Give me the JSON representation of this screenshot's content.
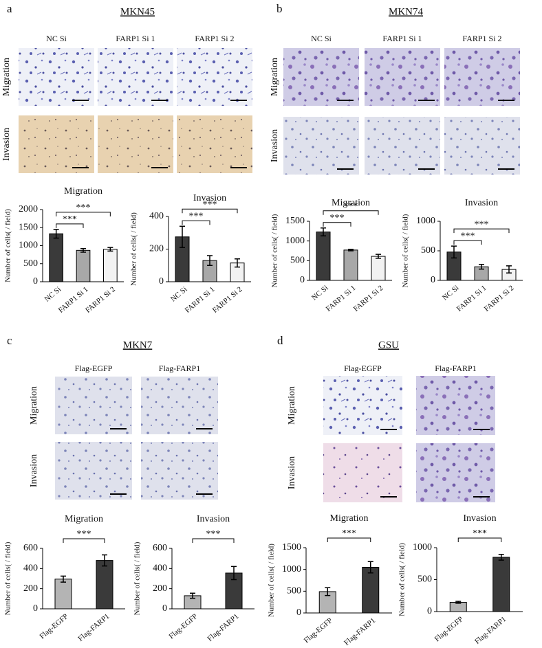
{
  "panels": [
    {
      "label": "a",
      "title": "MKN45",
      "columns": [
        "NC Si",
        "FARP1 Si 1",
        "FARP1 Si 2"
      ],
      "rows": [
        "Migration",
        "Invasion"
      ]
    },
    {
      "label": "b",
      "title": "MKN74",
      "columns": [
        "NC Si",
        "FARP1 Si 1",
        "FARP1 Si 2"
      ],
      "rows": [
        "Migration",
        "Invasion"
      ]
    },
    {
      "label": "c",
      "title": "MKN7",
      "columns": [
        "Flag-EGFP",
        "Flag-FARP1"
      ],
      "rows": [
        "Migration",
        "Invasion"
      ]
    },
    {
      "label": "d",
      "title": "GSU",
      "columns": [
        "Flag-EGFP",
        "Flag-FARP1"
      ],
      "rows": [
        "Migration",
        "Invasion"
      ]
    }
  ],
  "chart_data": [
    {
      "type": "bar",
      "title": "Migration",
      "ylabel": "Number of cells( / field)",
      "categories": [
        "NC Si",
        "FARP1 Si 1",
        "FARP1 Si 2"
      ],
      "values": [
        1330,
        870,
        900
      ],
      "errors": [
        120,
        50,
        50
      ],
      "colors": [
        "#3a3a3a",
        "#a8a8a8",
        "#f2f2f2"
      ],
      "ylim": [
        0,
        2000
      ],
      "yticks": [
        0,
        500,
        1000,
        1500,
        2000
      ],
      "annotations": [
        {
          "text": "***",
          "between": [
            "NC Si",
            "FARP1 Si 1"
          ]
        },
        {
          "text": "***",
          "between": [
            "NC Si",
            "FARP1 Si 2"
          ]
        }
      ]
    },
    {
      "type": "bar",
      "title": "Invasion",
      "ylabel": "Number of cells( / field)",
      "categories": [
        "NC Si",
        "FARP1 Si 1",
        "FARP1 Si 2"
      ],
      "values": [
        275,
        130,
        115
      ],
      "errors": [
        65,
        30,
        25
      ],
      "colors": [
        "#3a3a3a",
        "#a8a8a8",
        "#f2f2f2"
      ],
      "ylim": [
        0,
        400
      ],
      "yticks": [
        0,
        200,
        400
      ],
      "annotations": [
        {
          "text": "***",
          "between": [
            "NC Si",
            "FARP1 Si 1"
          ]
        },
        {
          "text": "***",
          "between": [
            "NC Si",
            "FARP1 Si 2"
          ]
        }
      ]
    },
    {
      "type": "bar",
      "title": "Migration",
      "ylabel": "Number of cells( / field)",
      "categories": [
        "NC Si",
        "FARP1 Si 1",
        "FARP1 Si 2"
      ],
      "values": [
        1230,
        770,
        610
      ],
      "errors": [
        100,
        20,
        50
      ],
      "colors": [
        "#3a3a3a",
        "#a8a8a8",
        "#f2f2f2"
      ],
      "ylim": [
        0,
        1500
      ],
      "yticks": [
        0,
        500,
        1000,
        1500
      ],
      "annotations": [
        {
          "text": "***",
          "between": [
            "NC Si",
            "FARP1 Si 1"
          ]
        },
        {
          "text": "***",
          "between": [
            "NC Si",
            "FARP1 Si 2"
          ]
        }
      ]
    },
    {
      "type": "bar",
      "title": "Invasion",
      "ylabel": "Number of cells( / field)",
      "categories": [
        "NC Si",
        "FARP1 Si 1",
        "FARP1 Si 2"
      ],
      "values": [
        480,
        230,
        185
      ],
      "errors": [
        100,
        40,
        60
      ],
      "colors": [
        "#3a3a3a",
        "#a8a8a8",
        "#f2f2f2"
      ],
      "ylim": [
        0,
        1000
      ],
      "yticks": [
        0,
        500,
        1000
      ],
      "annotations": [
        {
          "text": "***",
          "between": [
            "NC Si",
            "FARP1 Si 1"
          ]
        },
        {
          "text": "***",
          "between": [
            "NC Si",
            "FARP1 Si 2"
          ]
        }
      ]
    },
    {
      "type": "bar",
      "title": "Migration",
      "ylabel": "Number of cells( / field)",
      "categories": [
        "Flag-EGFP",
        "Flag-FARP1"
      ],
      "values": [
        295,
        480
      ],
      "errors": [
        30,
        55
      ],
      "colors": [
        "#b4b4b4",
        "#3a3a3a"
      ],
      "ylim": [
        0,
        600
      ],
      "yticks": [
        0,
        200,
        400,
        600
      ],
      "annotations": [
        {
          "text": "***",
          "between": [
            "Flag-EGFP",
            "Flag-FARP1"
          ]
        }
      ]
    },
    {
      "type": "bar",
      "title": "Invasion",
      "ylabel": "Number of cells( / field)",
      "categories": [
        "Flag-EGFP",
        "Flag-FARP1"
      ],
      "values": [
        130,
        355
      ],
      "errors": [
        25,
        65
      ],
      "colors": [
        "#b4b4b4",
        "#3a3a3a"
      ],
      "ylim": [
        0,
        600
      ],
      "yticks": [
        0,
        200,
        400,
        600
      ],
      "annotations": [
        {
          "text": "***",
          "between": [
            "Flag-EGFP",
            "Flag-FARP1"
          ]
        }
      ]
    },
    {
      "type": "bar",
      "title": "Migration",
      "ylabel": "Number of cells( / field)",
      "categories": [
        "Flag-EGFP",
        "Flag-FARP1"
      ],
      "values": [
        490,
        1050
      ],
      "errors": [
        90,
        130
      ],
      "colors": [
        "#b4b4b4",
        "#3a3a3a"
      ],
      "ylim": [
        0,
        1500
      ],
      "yticks": [
        0,
        500,
        1000,
        1500
      ],
      "annotations": [
        {
          "text": "***",
          "between": [
            "Flag-EGFP",
            "Flag-FARP1"
          ]
        }
      ]
    },
    {
      "type": "bar",
      "title": "Invasion",
      "ylabel": "Number of cells( / field)",
      "categories": [
        "Flag-EGFP",
        "Flag-FARP1"
      ],
      "values": [
        145,
        850
      ],
      "errors": [
        15,
        45
      ],
      "colors": [
        "#b4b4b4",
        "#3a3a3a"
      ],
      "ylim": [
        0,
        1000
      ],
      "yticks": [
        0,
        500,
        1000
      ],
      "annotations": [
        {
          "text": "***",
          "between": [
            "Flag-EGFP",
            "Flag-FARP1"
          ]
        }
      ]
    }
  ]
}
